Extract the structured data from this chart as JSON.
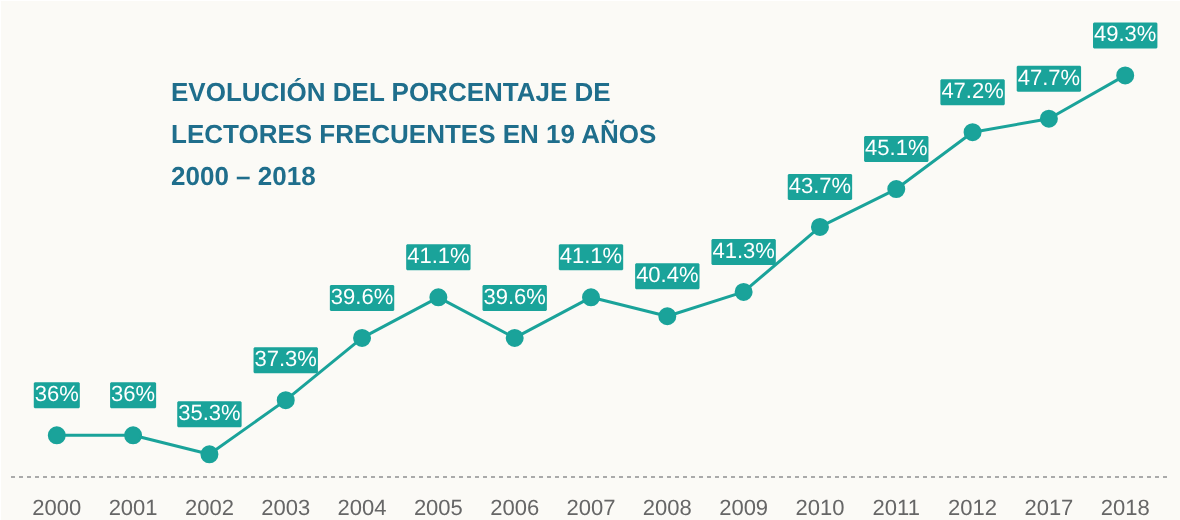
{
  "chart_data": {
    "type": "line",
    "title": "EVOLUCIÓN DEL PORCENTAJE DE\nLECTORES FRECUENTES EN 19 AÑOS\n2000 – 2018",
    "categories": [
      "2000",
      "2001",
      "2002",
      "2003",
      "2004",
      "2005",
      "2006",
      "2007",
      "2008",
      "2009",
      "2010",
      "2011",
      "2012",
      "2017",
      "2018"
    ],
    "values": [
      36,
      36,
      35.3,
      37.3,
      39.6,
      41.1,
      39.6,
      41.1,
      40.4,
      41.3,
      43.7,
      45.1,
      47.2,
      47.7,
      49.3
    ],
    "value_labels": [
      "36%",
      "36%",
      "35.3%",
      "37.3%",
      "39.6%",
      "41.1%",
      "39.6%",
      "41.1%",
      "40.4%",
      "41.3%",
      "43.7%",
      "45.1%",
      "47.2%",
      "47.7%",
      "49.3%"
    ],
    "color": "#1aa39a",
    "marker": "circle",
    "line_style": "solid",
    "grid": false
  }
}
